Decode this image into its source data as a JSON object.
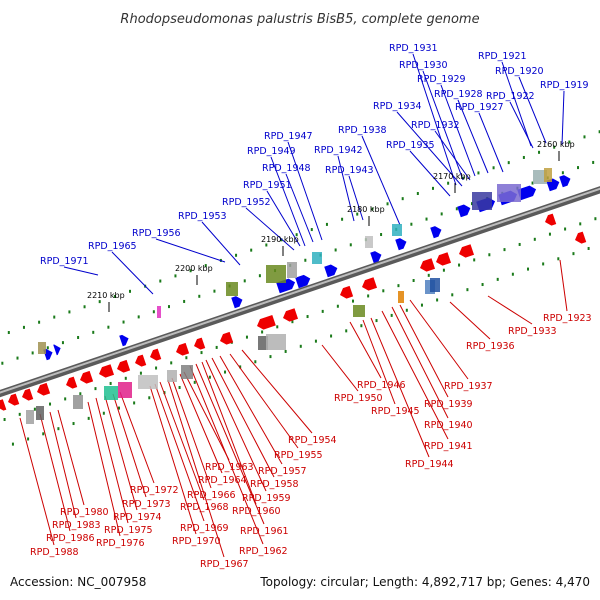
{
  "title": "Rhodopseudomonas palustris BisB5, complete genome",
  "accession": "Accession: NC_007958",
  "topology": "Topology: circular; Length: 4,892,717 bp; Genes: 4,470",
  "colors": {
    "forward_label": "#0000cc",
    "reverse_label": "#cc0000",
    "forward_gene": "#0000ee",
    "reverse_gene": "#ee0000",
    "tick": "#1a7a1a",
    "backbone": "#808080"
  },
  "scale_ticks": [
    "2160 kbp",
    "2170 kbp",
    "2180 kbp",
    "2190 kbp",
    "2200 kbp",
    "2210 kbp"
  ],
  "forward_genes": [
    "RPD_1919",
    "RPD_1920",
    "RPD_1921",
    "RPD_1922",
    "RPD_1927",
    "RPD_1928",
    "RPD_1929",
    "RPD_1930",
    "RPD_1931",
    "RPD_1932",
    "RPD_1934",
    "RPD_1935",
    "RPD_1938",
    "RPD_1942",
    "RPD_1943",
    "RPD_1947",
    "RPD_1948",
    "RPD_1949",
    "RPD_1951",
    "RPD_1952",
    "RPD_1953",
    "RPD_1956",
    "RPD_1965",
    "RPD_1971"
  ],
  "reverse_genes": [
    "RPD_1923",
    "RPD_1933",
    "RPD_1936",
    "RPD_1937",
    "RPD_1939",
    "RPD_1940",
    "RPD_1941",
    "RPD_1944",
    "RPD_1945",
    "RPD_1946",
    "RPD_1950",
    "RPD_1954",
    "RPD_1955",
    "RPD_1957",
    "RPD_1958",
    "RPD_1959",
    "RPD_1960",
    "RPD_1961",
    "RPD_1962",
    "RPD_1963",
    "RPD_1964",
    "RPD_1966",
    "RPD_1967",
    "RPD_1968",
    "RPD_1969",
    "RPD_1970",
    "RPD_1972",
    "RPD_1973",
    "RPD_1974",
    "RPD_1975",
    "RPD_1976",
    "RPD_1980",
    "RPD_1983",
    "RPD_1986",
    "RPD_1988"
  ]
}
